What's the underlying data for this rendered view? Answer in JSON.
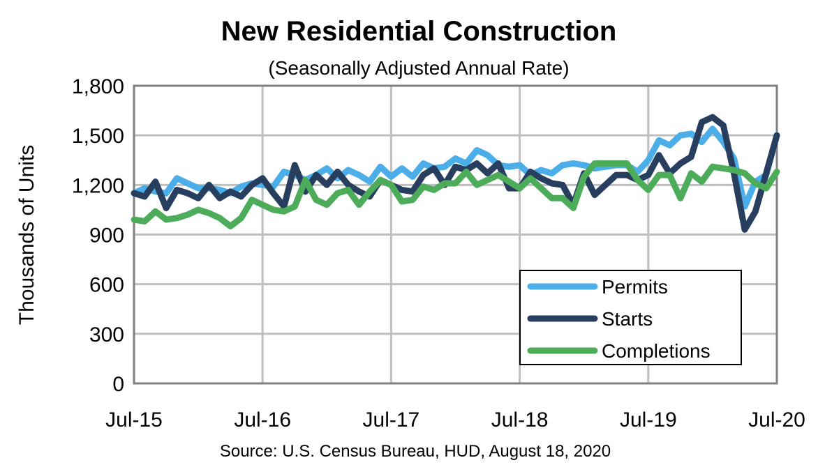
{
  "chart_data": {
    "type": "line",
    "title": "New Residential Construction",
    "subtitle": "(Seasonally Adjusted Annual Rate)",
    "xlabel": "",
    "ylabel": "Thousands of Units",
    "ylim": [
      0,
      1800
    ],
    "yticks": [
      "0",
      "300",
      "600",
      "900",
      "1,200",
      "1,500",
      "1,800"
    ],
    "ytick_values": [
      0,
      300,
      600,
      900,
      1200,
      1500,
      1800
    ],
    "xticks": [
      "Jul-15",
      "Jul-16",
      "Jul-17",
      "Jul-18",
      "Jul-19",
      "Jul-20"
    ],
    "grid": true,
    "legend_position": "bottom-right",
    "categories": [
      "Jul-15",
      "Aug-15",
      "Sep-15",
      "Oct-15",
      "Nov-15",
      "Dec-15",
      "Jan-16",
      "Feb-16",
      "Mar-16",
      "Apr-16",
      "May-16",
      "Jun-16",
      "Jul-16",
      "Aug-16",
      "Sep-16",
      "Oct-16",
      "Nov-16",
      "Dec-16",
      "Jan-17",
      "Feb-17",
      "Mar-17",
      "Apr-17",
      "May-17",
      "Jun-17",
      "Jul-17",
      "Aug-17",
      "Sep-17",
      "Oct-17",
      "Nov-17",
      "Dec-17",
      "Jan-18",
      "Feb-18",
      "Mar-18",
      "Apr-18",
      "May-18",
      "Jun-18",
      "Jul-18",
      "Aug-18",
      "Sep-18",
      "Oct-18",
      "Nov-18",
      "Dec-18",
      "Jan-19",
      "Feb-19",
      "Mar-19",
      "Apr-19",
      "May-19",
      "Jun-19",
      "Jul-19",
      "Aug-19",
      "Sep-19",
      "Oct-19",
      "Nov-19",
      "Dec-19",
      "Jan-20",
      "Feb-20",
      "Mar-20",
      "Apr-20",
      "May-20",
      "Jun-20",
      "Jul-20"
    ],
    "series": [
      {
        "name": "Permits",
        "color": "#4BAEE8",
        "values": [
          1150,
          1180,
          1160,
          1150,
          1240,
          1210,
          1180,
          1180,
          1170,
          1150,
          1190,
          1210,
          1200,
          1190,
          1280,
          1260,
          1230,
          1260,
          1300,
          1240,
          1290,
          1260,
          1220,
          1310,
          1250,
          1300,
          1250,
          1330,
          1300,
          1310,
          1360,
          1330,
          1410,
          1380,
          1320,
          1310,
          1320,
          1260,
          1290,
          1270,
          1320,
          1330,
          1320,
          1300,
          1310,
          1320,
          1320,
          1280,
          1350,
          1470,
          1440,
          1500,
          1510,
          1460,
          1540,
          1460,
          1360,
          1070,
          1220,
          1260,
          1500
        ]
      },
      {
        "name": "Starts",
        "color": "#283E5E",
        "values": [
          1150,
          1130,
          1220,
          1060,
          1170,
          1150,
          1120,
          1200,
          1120,
          1160,
          1130,
          1200,
          1240,
          1150,
          1070,
          1320,
          1160,
          1260,
          1200,
          1280,
          1200,
          1160,
          1130,
          1230,
          1200,
          1170,
          1160,
          1260,
          1300,
          1200,
          1310,
          1290,
          1330,
          1270,
          1330,
          1180,
          1180,
          1280,
          1240,
          1210,
          1200,
          1080,
          1270,
          1140,
          1200,
          1260,
          1260,
          1230,
          1260,
          1380,
          1270,
          1330,
          1370,
          1580,
          1610,
          1560,
          1270,
          930,
          1040,
          1270,
          1500
        ]
      },
      {
        "name": "Completions",
        "color": "#4DAC5A",
        "values": [
          990,
          980,
          1040,
          990,
          1000,
          1020,
          1050,
          1030,
          1000,
          950,
          1000,
          1110,
          1080,
          1050,
          1040,
          1070,
          1230,
          1110,
          1080,
          1150,
          1170,
          1080,
          1160,
          1230,
          1200,
          1100,
          1110,
          1190,
          1170,
          1210,
          1210,
          1280,
          1200,
          1230,
          1260,
          1220,
          1180,
          1240,
          1180,
          1120,
          1120,
          1060,
          1250,
          1330,
          1330,
          1330,
          1330,
          1230,
          1170,
          1260,
          1260,
          1120,
          1270,
          1220,
          1310,
          1300,
          1290,
          1270,
          1210,
          1180,
          1280
        ]
      }
    ],
    "source": "Source:  U.S. Census Bureau, HUD, August 18, 2020"
  }
}
